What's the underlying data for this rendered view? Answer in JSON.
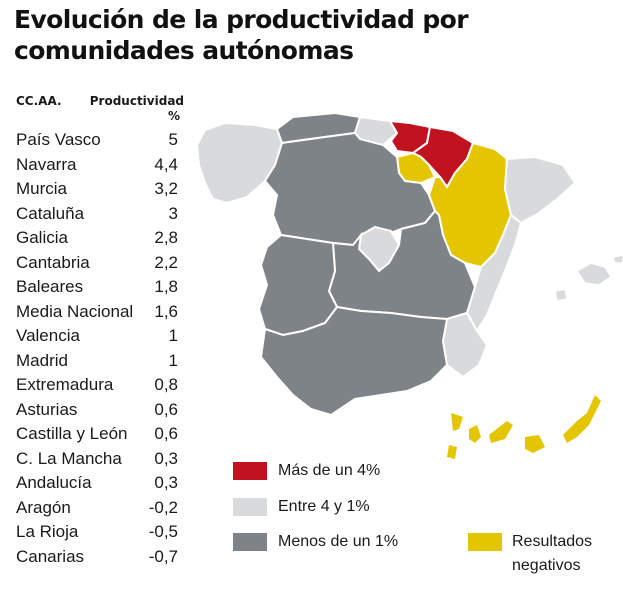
{
  "title": "Evolución de la productividad por comunidades autónomas",
  "table": {
    "col_region": "CC.AA.",
    "col_value": "Productividad",
    "unit": "%",
    "rows": [
      {
        "name": "País Vasco",
        "value": "5"
      },
      {
        "name": "Navarra",
        "value": "4,4"
      },
      {
        "name": "Murcia",
        "value": "3,2"
      },
      {
        "name": "Cataluña",
        "value": "3"
      },
      {
        "name": "Galicia",
        "value": "2,8"
      },
      {
        "name": "Cantabria",
        "value": "2,2"
      },
      {
        "name": "Baleares",
        "value": "1,8"
      },
      {
        "name": "Media Nacional",
        "value": "1,6"
      },
      {
        "name": "Valencia",
        "value": "1"
      },
      {
        "name": "Madrid",
        "value": "1"
      },
      {
        "name": "Extremadura",
        "value": "0,8"
      },
      {
        "name": "Asturias",
        "value": "0,6"
      },
      {
        "name": "Castilla y León",
        "value": "0,6"
      },
      {
        "name": "C. La Mancha",
        "value": "0,3"
      },
      {
        "name": "Andalucía",
        "value": "0,3"
      },
      {
        "name": "Aragón",
        "value": "-0,2"
      },
      {
        "name": "La Rioja",
        "value": "-0,5"
      },
      {
        "name": "Canarias",
        "value": "-0,7"
      }
    ]
  },
  "legend": {
    "high": {
      "label": "Más de un 4%",
      "color": "#c1121f"
    },
    "mid": {
      "label": "Entre 4 y 1%",
      "color": "#d9dadb"
    },
    "low": {
      "label": "Menos de un 1%",
      "color": "#7e8387"
    },
    "negative": {
      "label1": "Resultados",
      "label2": "negativos",
      "color": "#e3c600"
    }
  }
}
